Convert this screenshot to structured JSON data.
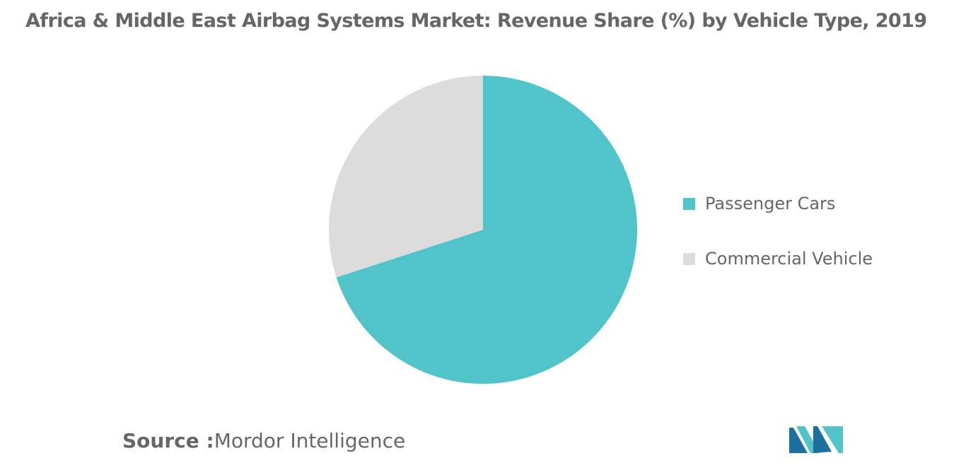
{
  "title": "Africa & Middle East Airbag Systems Market: Revenue Share (%) by Vehicle Type, 2019",
  "chart_data": {
    "type": "pie",
    "title": "Africa & Middle East Airbag Systems Market: Revenue Share (%) by Vehicle Type, 2019",
    "slices": [
      {
        "label": "Passenger Cars",
        "value": 70,
        "color": "#50C4C9"
      },
      {
        "label": "Commercial Vehicle",
        "value": 30,
        "color": "#DCDCDC"
      }
    ],
    "start": "12 o'clock, clockwise",
    "legend_position": "right"
  },
  "legend": {
    "items": [
      {
        "label": "Passenger Cars",
        "color": "#50C4C9"
      },
      {
        "label": "Commercial Vehicle",
        "color": "#DCDCDC"
      }
    ]
  },
  "source": {
    "prefix": "Source :",
    "text": "Mordor Intelligence"
  },
  "logo": {
    "icon": "mordor-intelligence-logo",
    "colors": [
      "#1D6FA0",
      "#50C4C9"
    ]
  }
}
